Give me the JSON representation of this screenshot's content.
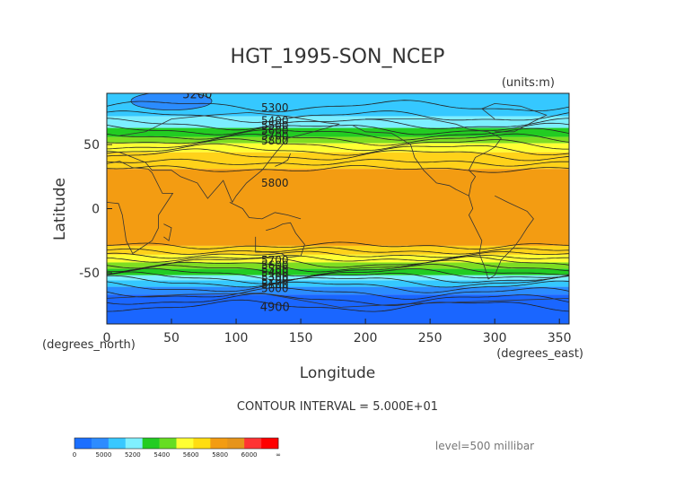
{
  "chart_data": {
    "type": "contour",
    "title": "HGT_1995-SON_NCEP",
    "units_label": "(units:m)",
    "xlabel": "Longitude",
    "ylabel": "Latitude",
    "x_units_label": "(degrees_east)",
    "y_units_label": "(degrees_north)",
    "xlim": [
      0,
      357.5
    ],
    "ylim": [
      -90,
      90
    ],
    "xticks": [
      0,
      50,
      100,
      150,
      200,
      250,
      300,
      350
    ],
    "yticks": [
      50,
      0,
      -50
    ],
    "contour_interval_text": "CONTOUR INTERVAL = 5.000E+01",
    "level_text": "level=500 millibar",
    "contour_labels": [
      "5200",
      "5300",
      "5400",
      "5500",
      "5600",
      "5700",
      "5800",
      "5800",
      "5700",
      "5600",
      "5500",
      "5400",
      "5300",
      "5200",
      "5100",
      "5000",
      "4900"
    ],
    "colorbar": {
      "ticks": [
        "0",
        "5000",
        "5200",
        "5400",
        "5600",
        "5800",
        "6000",
        "∞"
      ],
      "colors": [
        "#1b6fff",
        "#2d8cff",
        "#38c8ff",
        "#80f0ff",
        "#22cc22",
        "#66dd22",
        "#ffff33",
        "#ffdd11",
        "#f39c12",
        "#e6941a",
        "#ff3333",
        "#ff0000"
      ]
    },
    "band_colors": {
      "deep_blue": "#1a66ff",
      "blue": "#2b8cff",
      "cyan": "#35c8ff",
      "light_cyan": "#7ceeff",
      "green": "#22cc22",
      "light_green": "#7edd22",
      "yellow": "#ffff33",
      "gold": "#ffd21a",
      "orange": "#f39c12"
    }
  }
}
